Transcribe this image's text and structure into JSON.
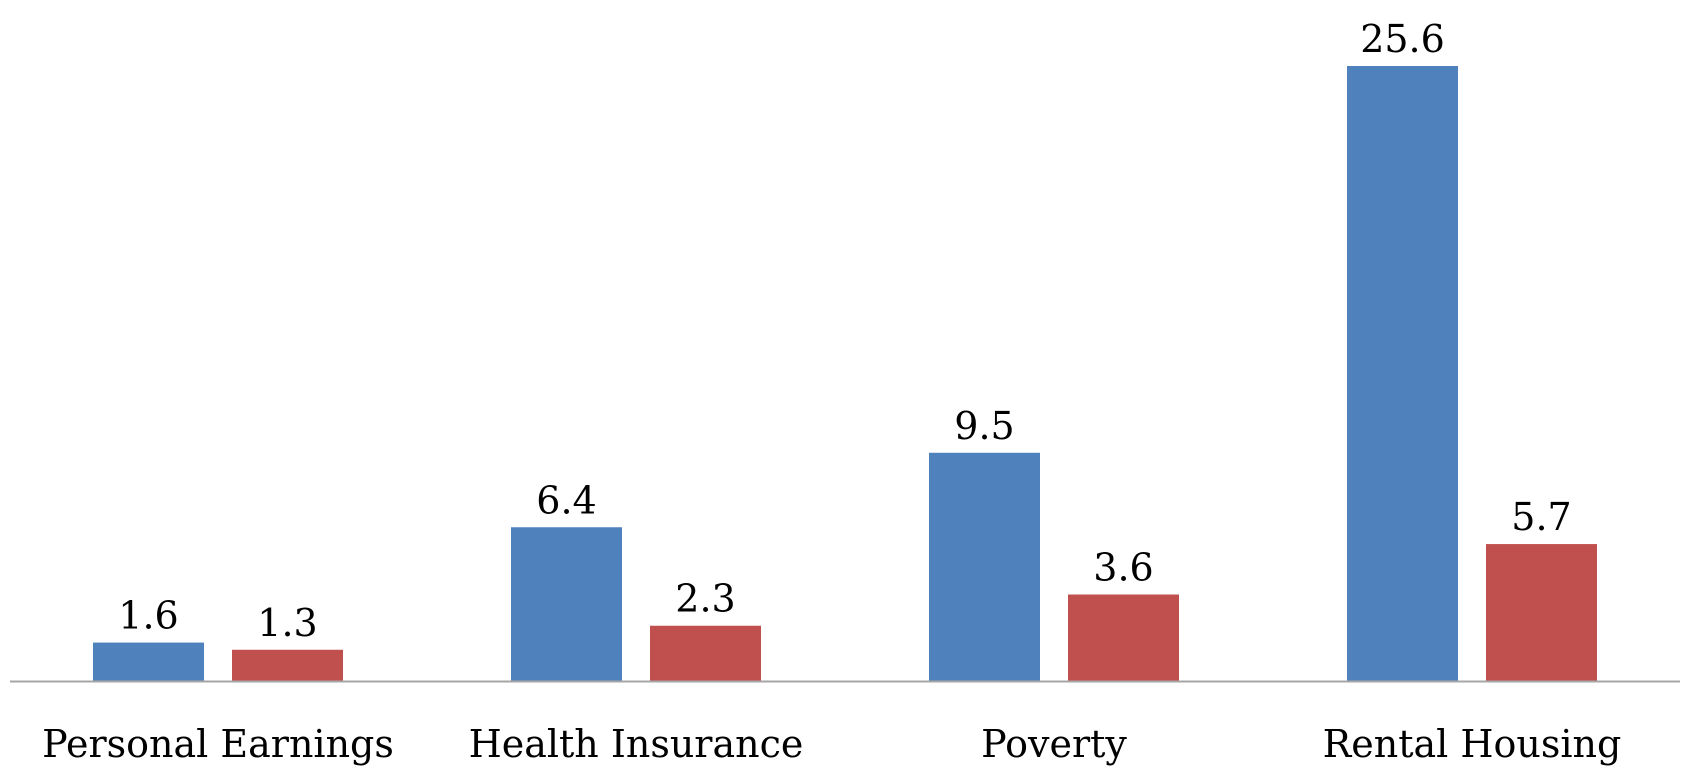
{
  "chart_data": {
    "type": "bar",
    "categories": [
      "Personal Earnings",
      "Health Insurance",
      "Poverty",
      "Rental Housing"
    ],
    "series": [
      {
        "values": [
          1.6,
          6.4,
          9.5,
          25.6
        ],
        "color": "#4F81BD"
      },
      {
        "values": [
          1.3,
          2.3,
          3.6,
          5.7
        ],
        "color": "#C0504D"
      }
    ],
    "value_labels": [
      [
        "1.6",
        "6.4",
        "9.5",
        "25.6"
      ],
      [
        "1.3",
        "2.3",
        "3.6",
        "5.7"
      ]
    ],
    "title": "",
    "xlabel": "",
    "ylabel": "",
    "ylim": [
      0,
      27
    ],
    "axis_color": "#A6A6A6",
    "grid": false,
    "legend": false
  }
}
